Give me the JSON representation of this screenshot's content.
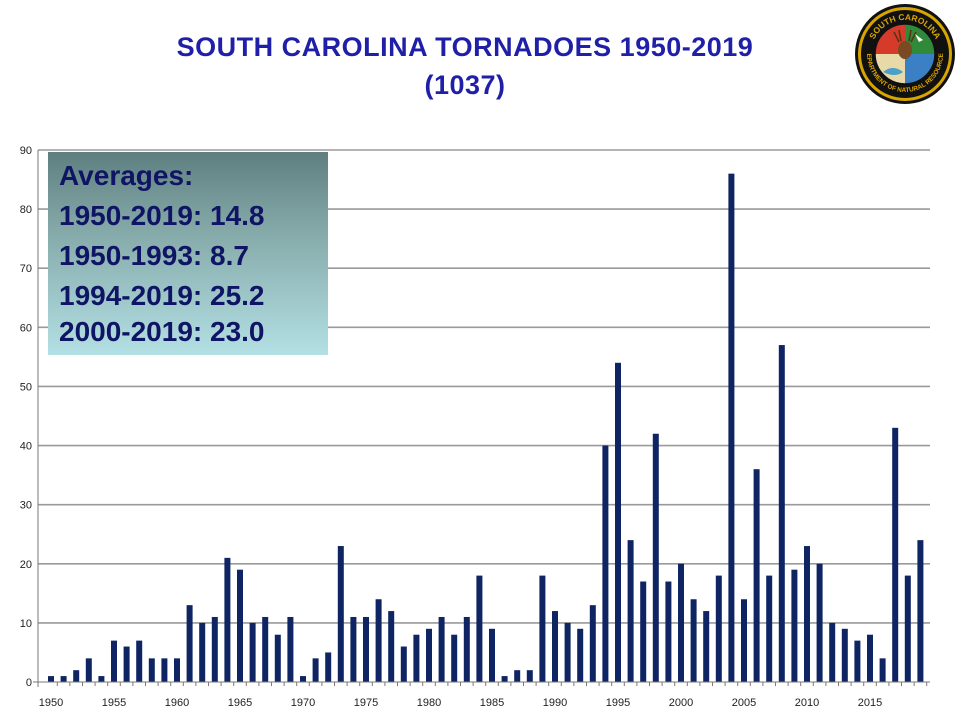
{
  "title": {
    "line1": "SOUTH CAROLINA TORNADOES 1950-2019",
    "line2": "(1037)"
  },
  "logo": {
    "label_top": "SOUTH CAROLINA",
    "label_bottom": "DEPARTMENT OF NATURAL RESOURCES",
    "icon": "scdnr-seal-icon"
  },
  "averages": {
    "heading": "Averages:",
    "lines": [
      "1950-2019:  14.8",
      "1950-1993:  8.7",
      "1994-2019:  25.2",
      "2000-2019:  23.0"
    ]
  },
  "colors": {
    "title": "#1f1fa8",
    "bar": "#0f2462",
    "grid": "#9a9a9a",
    "box_text": "#101464"
  },
  "chart_data": {
    "type": "bar",
    "title": "SOUTH CAROLINA TORNADOES 1950-2019",
    "subtitle": "(1037)",
    "xlabel": "",
    "ylabel": "",
    "x": [
      1950,
      1951,
      1952,
      1953,
      1954,
      1955,
      1956,
      1957,
      1958,
      1959,
      1960,
      1961,
      1962,
      1963,
      1964,
      1965,
      1966,
      1967,
      1968,
      1969,
      1970,
      1971,
      1972,
      1973,
      1974,
      1975,
      1976,
      1977,
      1978,
      1979,
      1980,
      1981,
      1982,
      1983,
      1984,
      1985,
      1986,
      1987,
      1988,
      1989,
      1990,
      1991,
      1992,
      1993,
      1994,
      1995,
      1996,
      1997,
      1998,
      1999,
      2000,
      2001,
      2002,
      2003,
      2004,
      2005,
      2006,
      2007,
      2008,
      2009,
      2010,
      2011,
      2012,
      2013,
      2014,
      2015,
      2016,
      2017,
      2018,
      2019
    ],
    "values": [
      1,
      1,
      2,
      4,
      1,
      7,
      6,
      7,
      4,
      4,
      4,
      13,
      10,
      11,
      21,
      19,
      10,
      11,
      8,
      11,
      1,
      4,
      5,
      23,
      11,
      11,
      14,
      12,
      6,
      8,
      9,
      11,
      8,
      11,
      18,
      9,
      1,
      2,
      2,
      18,
      12,
      10,
      9,
      13,
      40,
      54,
      24,
      17,
      42,
      17,
      20,
      14,
      12,
      18,
      86,
      14,
      36,
      18,
      57,
      19,
      23,
      20,
      10,
      9,
      7,
      8,
      4,
      43,
      18,
      24
    ],
    "x_tick_labels": [
      "1950",
      "1955",
      "1960",
      "1965",
      "1970",
      "1975",
      "1980",
      "1985",
      "1990",
      "1995",
      "2000",
      "2005",
      "2010",
      "2015"
    ],
    "y_tick_labels": [
      "0",
      "10",
      "20",
      "30",
      "40",
      "50",
      "60",
      "70",
      "80",
      "90"
    ],
    "ylim": [
      0,
      90
    ],
    "grid": true,
    "legend": "none"
  }
}
